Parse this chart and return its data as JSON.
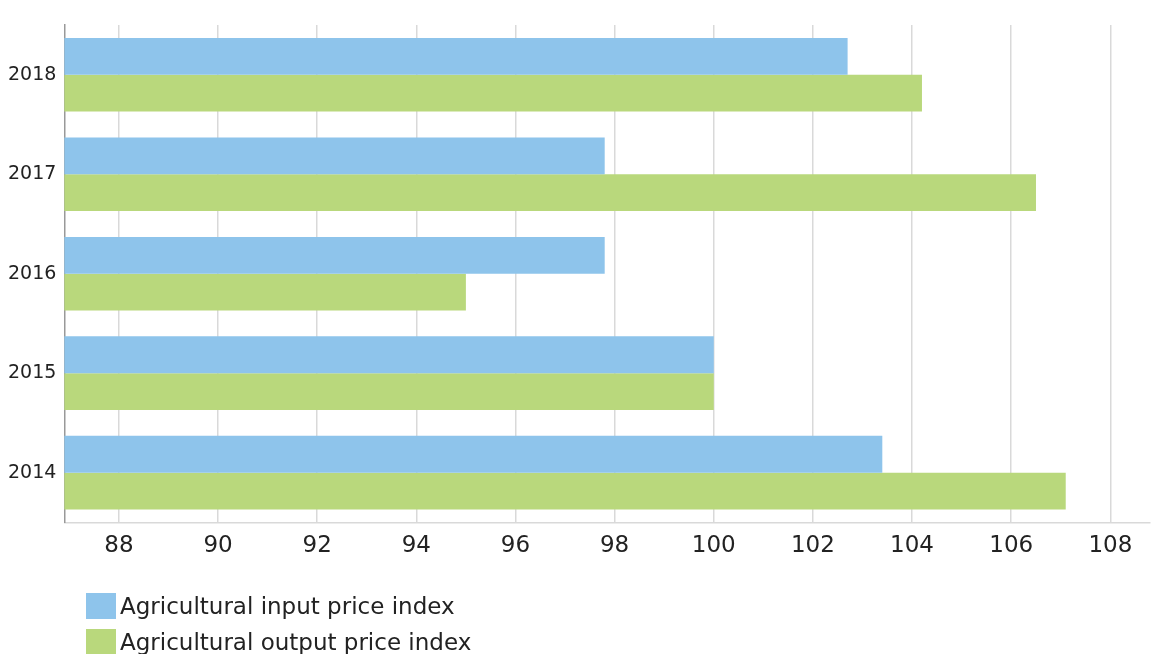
{
  "chart_data": {
    "type": "bar",
    "orientation": "horizontal",
    "categories": [
      "2018",
      "2017",
      "2016",
      "2015",
      "2014"
    ],
    "series": [
      {
        "name": "Agricultural input price index",
        "color": "#8ec4eb",
        "values": [
          102.7,
          97.8,
          97.8,
          100.0,
          103.4
        ]
      },
      {
        "name": "Agricultural output price index",
        "color": "#b9d87c",
        "values": [
          104.2,
          106.5,
          95.0,
          100.0,
          107.1
        ]
      }
    ],
    "xlim": [
      86.9,
      108.8
    ],
    "xticks": [
      88,
      90,
      92,
      94,
      96,
      98,
      100,
      102,
      104,
      106,
      108
    ],
    "grid": "x",
    "legend": "bottom left"
  }
}
